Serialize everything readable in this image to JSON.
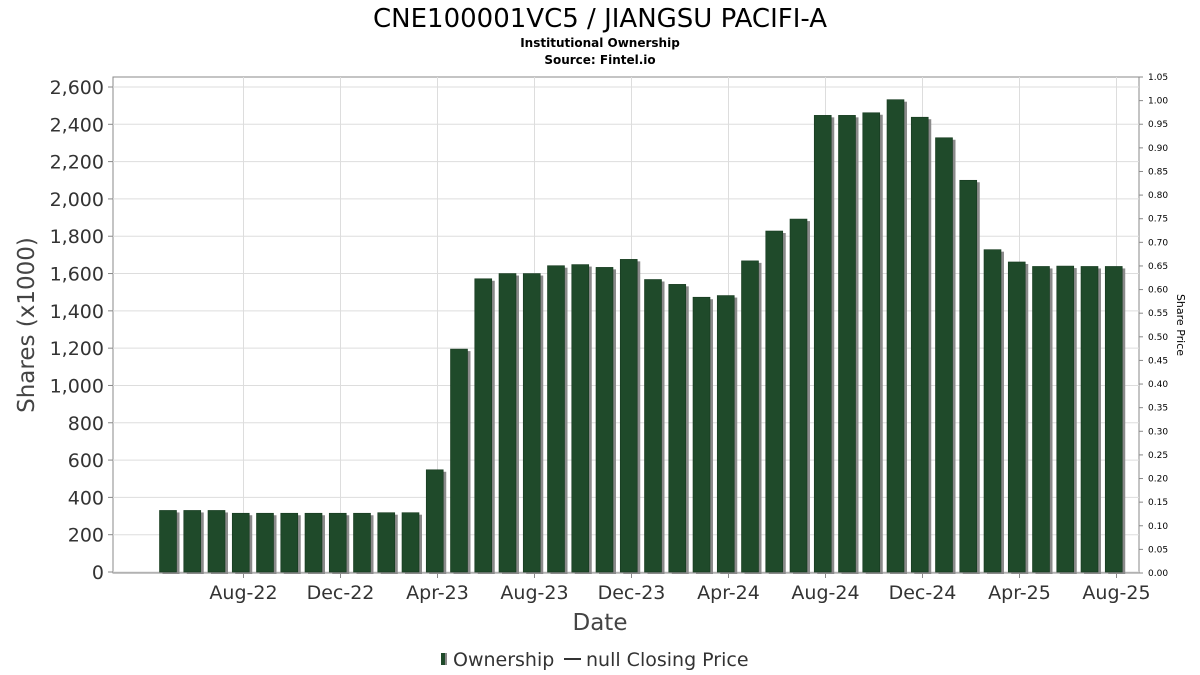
{
  "chart_data": {
    "type": "bar",
    "title": "CNE100001VC5 / JIANGSU PACIFI-A",
    "subtitle": "Institutional Ownership",
    "source": "Source: Fintel.io",
    "xlabel": "Date",
    "ylabel": "Shares (x1000)",
    "y2label": "Share Price",
    "ylim": [
      0,
      2650
    ],
    "y2lim": [
      0,
      1.05
    ],
    "yticks": [
      "0",
      "200",
      "400",
      "600",
      "800",
      "1,000",
      "1,200",
      "1,400",
      "1,600",
      "1,800",
      "2,000",
      "2,200",
      "2,400",
      "2,600"
    ],
    "y2ticks": [
      "0.00",
      "0.05",
      "0.10",
      "0.15",
      "0.20",
      "0.25",
      "0.30",
      "0.35",
      "0.40",
      "0.45",
      "0.50",
      "0.55",
      "0.60",
      "0.65",
      "0.70",
      "0.75",
      "0.80",
      "0.85",
      "0.90",
      "0.95",
      "1.00",
      "1.05"
    ],
    "xtick_labels": [
      "Aug-22",
      "Dec-22",
      "Apr-23",
      "Aug-23",
      "Dec-23",
      "Apr-24",
      "Aug-24",
      "Dec-24",
      "Apr-25",
      "Aug-25"
    ],
    "grid": true,
    "legend_position": "bottom",
    "colors": {
      "bar": "#1f4a2a",
      "bar_shadow": "#8a8a8a",
      "grid": "#dddddd"
    },
    "series": [
      {
        "name": "Ownership",
        "x": [
          "2022-06",
          "2022-07",
          "2022-08",
          "2022-09",
          "2022-10",
          "2022-11",
          "2022-12",
          "2023-01",
          "2023-02",
          "2023-03",
          "2023-04",
          "2023-05",
          "2023-06",
          "2023-07",
          "2023-08",
          "2023-09",
          "2023-10",
          "2023-11",
          "2023-12",
          "2024-01",
          "2024-02",
          "2024-03",
          "2024-04",
          "2024-05",
          "2024-06",
          "2024-07",
          "2024-08",
          "2024-09",
          "2024-10",
          "2024-11",
          "2024-12",
          "2025-01",
          "2025-02",
          "2025-03",
          "2025-04",
          "2025-05",
          "2025-06",
          "2025-07",
          "2025-08",
          "2025-09"
        ],
        "values": [
          330,
          330,
          330,
          315,
          315,
          315,
          315,
          315,
          315,
          318,
          318,
          548,
          1195,
          1572,
          1600,
          1600,
          1642,
          1648,
          1633,
          1676,
          1568,
          1542,
          1473,
          1482,
          1668,
          1828,
          1892,
          2448,
          2448,
          2462,
          2532,
          2438,
          2328,
          2100,
          1728,
          1662,
          1638,
          1640,
          1638,
          1638
        ]
      }
    ],
    "legend": [
      {
        "marker": "bar",
        "label": "Ownership"
      },
      {
        "marker": "line",
        "label": "null Closing Price"
      }
    ]
  }
}
